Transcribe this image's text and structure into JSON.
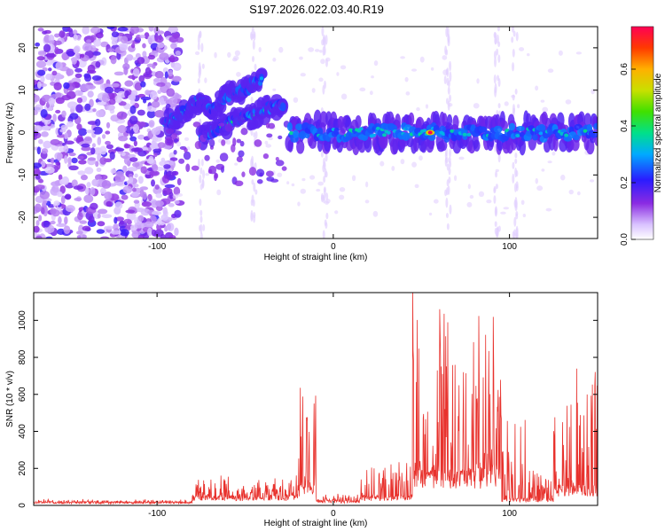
{
  "title": "S197.2026.022.03.40.R19",
  "chart_data": [
    {
      "type": "heatmap",
      "xlabel": "Height of straight line (km)",
      "ylabel": "Frequency (Hz)",
      "xlim": [
        -170,
        150
      ],
      "ylim": [
        -25,
        25
      ],
      "xticks": [
        -100,
        0,
        100
      ],
      "yticks": [
        -20,
        -10,
        0,
        10,
        20
      ],
      "colorbar": {
        "label": "Normalized spectral amplitude",
        "range": [
          0.0,
          0.75
        ],
        "ticks": [
          "0.0",
          "0.2",
          "0.4",
          "0.6"
        ],
        "tick_values": [
          0.0,
          0.2,
          0.4,
          0.6
        ]
      },
      "features": [
        {
          "name": "broadband noise",
          "x_range": [
            -170,
            -95
          ],
          "y_range": [
            -25,
            25
          ],
          "level": 0.1
        },
        {
          "name": "rising streak A",
          "points": [
            [
              -95,
              2
            ],
            [
              -85,
              5
            ],
            [
              -75,
              8
            ],
            [
              -70,
              5
            ],
            [
              -60,
              9
            ],
            [
              -50,
              10
            ],
            [
              -40,
              13
            ]
          ],
          "level": 0.3
        },
        {
          "name": "rising streak B",
          "points": [
            [
              -75,
              -1
            ],
            [
              -65,
              1
            ],
            [
              -55,
              3
            ],
            [
              -45,
              4
            ],
            [
              -35,
              6
            ],
            [
              -28,
              7
            ]
          ],
          "level": 0.35
        },
        {
          "name": "main band",
          "x_range": [
            -25,
            150
          ],
          "y_center": 0,
          "y_halfwidth": 2.5,
          "level": 0.3
        },
        {
          "name": "peak",
          "x": 55,
          "y": 0,
          "level": 0.75
        }
      ]
    },
    {
      "type": "line",
      "xlabel": "Height of straight line (km)",
      "ylabel": "SNR (10 * v/v)",
      "xlim": [
        -170,
        150
      ],
      "ylim": [
        0,
        1150
      ],
      "xticks": [
        -100,
        0,
        100
      ],
      "yticks": [
        0,
        200,
        400,
        600,
        800,
        1000
      ],
      "color": "#e8322d",
      "segments": [
        {
          "x_range": [
            -170,
            -80
          ],
          "base": 15,
          "amp": 15
        },
        {
          "x_range": [
            -80,
            -20
          ],
          "base": 40,
          "amp": 120
        },
        {
          "x_range": [
            -20,
            -10
          ],
          "base": 80,
          "amp": 600
        },
        {
          "x_range": [
            -10,
            15
          ],
          "base": 20,
          "amp": 40
        },
        {
          "x_range": [
            15,
            45
          ],
          "base": 40,
          "amp": 200
        },
        {
          "x_range": [
            45,
            60
          ],
          "base": 150,
          "amp": 1150
        },
        {
          "x_range": [
            60,
            95
          ],
          "base": 150,
          "amp": 950
        },
        {
          "x_range": [
            95,
            110
          ],
          "base": 30,
          "amp": 500
        },
        {
          "x_range": [
            110,
            125
          ],
          "base": 30,
          "amp": 150
        },
        {
          "x_range": [
            125,
            150
          ],
          "base": 80,
          "amp": 700
        }
      ]
    }
  ]
}
